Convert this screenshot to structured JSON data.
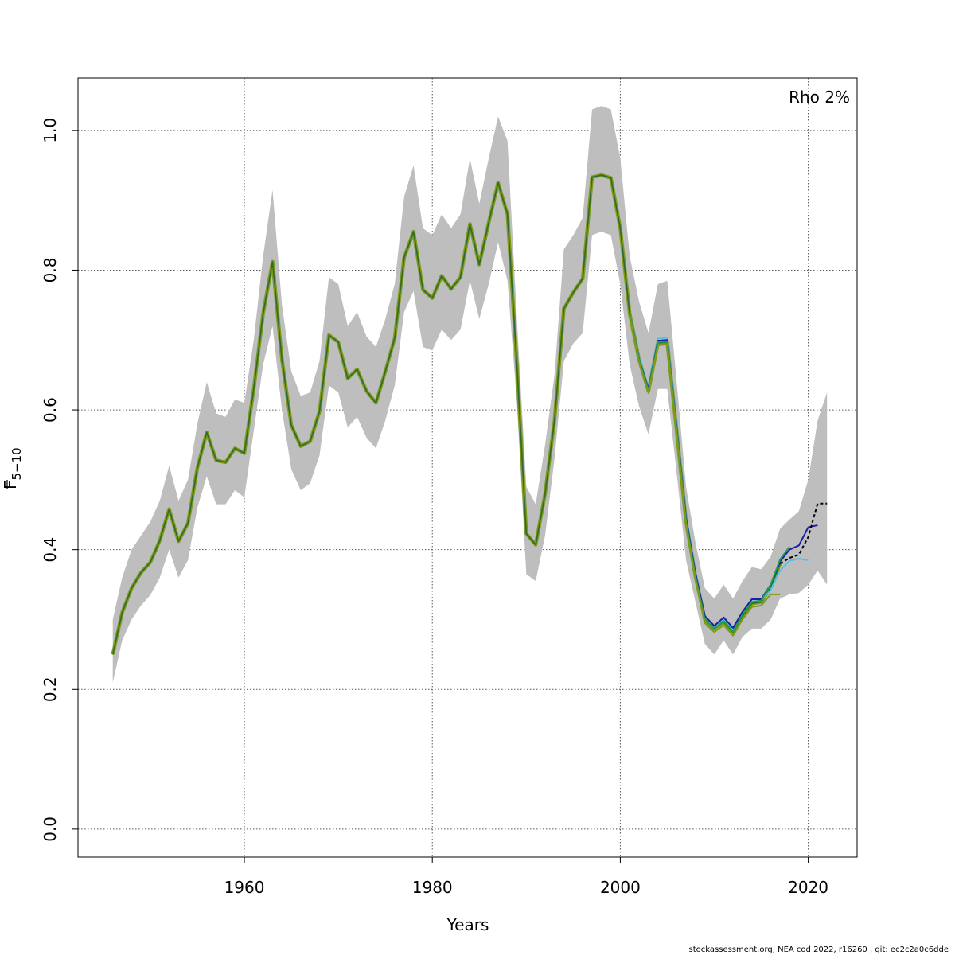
{
  "chart_data": {
    "type": "line",
    "xlabel": "Years",
    "ylabel_main": "F",
    "ylabel_sub": "5−10",
    "annotation": "Rho 2%",
    "footer": "stockassessment.org, NEA  cod  2022, r16260 , git: ec2c2a0c6dde",
    "xlim": [
      1942.3,
      2025.2
    ],
    "ylim": [
      -0.04,
      1.075
    ],
    "x_ticks": [
      1960,
      1980,
      2000,
      2020
    ],
    "y_ticks": [
      0.0,
      0.2,
      0.4,
      0.6,
      0.8,
      1.0
    ],
    "y_tick_labels": [
      "0.0",
      "0.2",
      "0.4",
      "0.6",
      "0.8",
      "1.0"
    ],
    "grid": true,
    "colors": {
      "band": "#bebebe",
      "base": "#000000",
      "peel1": "#4fc4e8",
      "peel2": "#1f1fa0",
      "peel3": "#20a050",
      "peel4": "#7f9a1a",
      "overlay_main": "#2e6b2e"
    },
    "band_upper": [
      [
        1946,
        0.3
      ],
      [
        1947,
        0.36
      ],
      [
        1948,
        0.4
      ],
      [
        1949,
        0.42
      ],
      [
        1950,
        0.44
      ],
      [
        1951,
        0.47
      ],
      [
        1952,
        0.52
      ],
      [
        1953,
        0.47
      ],
      [
        1954,
        0.5
      ],
      [
        1955,
        0.58
      ],
      [
        1956,
        0.64
      ],
      [
        1957,
        0.595
      ],
      [
        1958,
        0.59
      ],
      [
        1959,
        0.615
      ],
      [
        1960,
        0.61
      ],
      [
        1961,
        0.7
      ],
      [
        1962,
        0.82
      ],
      [
        1963,
        0.915
      ],
      [
        1964,
        0.75
      ],
      [
        1965,
        0.655
      ],
      [
        1966,
        0.62
      ],
      [
        1967,
        0.625
      ],
      [
        1968,
        0.67
      ],
      [
        1969,
        0.79
      ],
      [
        1970,
        0.78
      ],
      [
        1971,
        0.72
      ],
      [
        1972,
        0.74
      ],
      [
        1973,
        0.705
      ],
      [
        1974,
        0.69
      ],
      [
        1975,
        0.73
      ],
      [
        1976,
        0.78
      ],
      [
        1977,
        0.905
      ],
      [
        1978,
        0.95
      ],
      [
        1979,
        0.86
      ],
      [
        1980,
        0.85
      ],
      [
        1981,
        0.88
      ],
      [
        1982,
        0.86
      ],
      [
        1983,
        0.88
      ],
      [
        1984,
        0.96
      ],
      [
        1985,
        0.895
      ],
      [
        1986,
        0.96
      ],
      [
        1987,
        1.02
      ],
      [
        1988,
        0.985
      ],
      [
        1989,
        0.73
      ],
      [
        1990,
        0.49
      ],
      [
        1991,
        0.465
      ],
      [
        1992,
        0.55
      ],
      [
        1993,
        0.65
      ],
      [
        1994,
        0.83
      ],
      [
        1995,
        0.85
      ],
      [
        1996,
        0.875
      ],
      [
        1997,
        1.03
      ],
      [
        1998,
        1.035
      ],
      [
        1999,
        1.03
      ],
      [
        2000,
        0.96
      ],
      [
        2001,
        0.82
      ],
      [
        2002,
        0.755
      ],
      [
        2003,
        0.71
      ],
      [
        2004,
        0.78
      ],
      [
        2005,
        0.785
      ],
      [
        2006,
        0.64
      ],
      [
        2007,
        0.49
      ],
      [
        2008,
        0.41
      ],
      [
        2009,
        0.345
      ],
      [
        2010,
        0.33
      ],
      [
        2011,
        0.35
      ],
      [
        2012,
        0.33
      ],
      [
        2013,
        0.355
      ],
      [
        2014,
        0.375
      ],
      [
        2015,
        0.372
      ],
      [
        2016,
        0.39
      ],
      [
        2017,
        0.43
      ],
      [
        2018,
        0.443
      ],
      [
        2019,
        0.455
      ],
      [
        2020,
        0.5
      ],
      [
        2021,
        0.585
      ],
      [
        2022,
        0.625
      ]
    ],
    "band_lower": [
      [
        1946,
        0.21
      ],
      [
        1947,
        0.27
      ],
      [
        1948,
        0.3
      ],
      [
        1949,
        0.32
      ],
      [
        1950,
        0.335
      ],
      [
        1951,
        0.36
      ],
      [
        1952,
        0.4
      ],
      [
        1953,
        0.36
      ],
      [
        1954,
        0.385
      ],
      [
        1955,
        0.46
      ],
      [
        1956,
        0.505
      ],
      [
        1957,
        0.465
      ],
      [
        1958,
        0.465
      ],
      [
        1959,
        0.485
      ],
      [
        1960,
        0.475
      ],
      [
        1961,
        0.57
      ],
      [
        1962,
        0.665
      ],
      [
        1963,
        0.72
      ],
      [
        1964,
        0.6
      ],
      [
        1965,
        0.515
      ],
      [
        1966,
        0.485
      ],
      [
        1967,
        0.495
      ],
      [
        1968,
        0.535
      ],
      [
        1969,
        0.635
      ],
      [
        1970,
        0.625
      ],
      [
        1971,
        0.575
      ],
      [
        1972,
        0.59
      ],
      [
        1973,
        0.56
      ],
      [
        1974,
        0.545
      ],
      [
        1975,
        0.585
      ],
      [
        1976,
        0.635
      ],
      [
        1977,
        0.74
      ],
      [
        1978,
        0.77
      ],
      [
        1979,
        0.69
      ],
      [
        1980,
        0.685
      ],
      [
        1981,
        0.715
      ],
      [
        1982,
        0.7
      ],
      [
        1983,
        0.715
      ],
      [
        1984,
        0.785
      ],
      [
        1985,
        0.73
      ],
      [
        1986,
        0.78
      ],
      [
        1987,
        0.84
      ],
      [
        1988,
        0.785
      ],
      [
        1989,
        0.61
      ],
      [
        1990,
        0.365
      ],
      [
        1991,
        0.355
      ],
      [
        1992,
        0.42
      ],
      [
        1993,
        0.53
      ],
      [
        1994,
        0.67
      ],
      [
        1995,
        0.695
      ],
      [
        1996,
        0.71
      ],
      [
        1997,
        0.85
      ],
      [
        1998,
        0.855
      ],
      [
        1999,
        0.85
      ],
      [
        2000,
        0.78
      ],
      [
        2001,
        0.665
      ],
      [
        2002,
        0.605
      ],
      [
        2003,
        0.565
      ],
      [
        2004,
        0.63
      ],
      [
        2005,
        0.63
      ],
      [
        2006,
        0.51
      ],
      [
        2007,
        0.385
      ],
      [
        2008,
        0.325
      ],
      [
        2009,
        0.265
      ],
      [
        2010,
        0.25
      ],
      [
        2011,
        0.27
      ],
      [
        2012,
        0.25
      ],
      [
        2013,
        0.275
      ],
      [
        2014,
        0.287
      ],
      [
        2015,
        0.287
      ],
      [
        2016,
        0.3
      ],
      [
        2017,
        0.33
      ],
      [
        2018,
        0.336
      ],
      [
        2019,
        0.338
      ],
      [
        2020,
        0.35
      ],
      [
        2021,
        0.37
      ],
      [
        2022,
        0.35
      ]
    ],
    "main_line": [
      [
        1946,
        0.25
      ],
      [
        1947,
        0.31
      ],
      [
        1948,
        0.345
      ],
      [
        1949,
        0.367
      ],
      [
        1950,
        0.382
      ],
      [
        1951,
        0.413
      ],
      [
        1952,
        0.458
      ],
      [
        1953,
        0.412
      ],
      [
        1954,
        0.438
      ],
      [
        1955,
        0.517
      ],
      [
        1956,
        0.568
      ],
      [
        1957,
        0.528
      ],
      [
        1958,
        0.525
      ],
      [
        1959,
        0.545
      ],
      [
        1960,
        0.538
      ],
      [
        1961,
        0.63
      ],
      [
        1962,
        0.738
      ],
      [
        1963,
        0.812
      ],
      [
        1964,
        0.672
      ],
      [
        1965,
        0.578
      ],
      [
        1966,
        0.548
      ],
      [
        1967,
        0.555
      ],
      [
        1968,
        0.598
      ],
      [
        1969,
        0.707
      ],
      [
        1970,
        0.697
      ],
      [
        1971,
        0.645
      ],
      [
        1972,
        0.658
      ],
      [
        1973,
        0.627
      ],
      [
        1974,
        0.61
      ],
      [
        1975,
        0.655
      ],
      [
        1976,
        0.703
      ],
      [
        1977,
        0.818
      ],
      [
        1978,
        0.855
      ],
      [
        1979,
        0.772
      ],
      [
        1980,
        0.76
      ],
      [
        1981,
        0.792
      ],
      [
        1982,
        0.773
      ],
      [
        1983,
        0.79
      ],
      [
        1984,
        0.866
      ],
      [
        1985,
        0.808
      ],
      [
        1986,
        0.868
      ],
      [
        1987,
        0.925
      ],
      [
        1988,
        0.88
      ],
      [
        1989,
        0.665
      ],
      [
        1990,
        0.423
      ],
      [
        1991,
        0.407
      ],
      [
        1992,
        0.48
      ],
      [
        1993,
        0.585
      ],
      [
        1994,
        0.745
      ],
      [
        1995,
        0.768
      ],
      [
        1996,
        0.788
      ],
      [
        1997,
        0.933
      ],
      [
        1998,
        0.936
      ],
      [
        1999,
        0.932
      ],
      [
        2000,
        0.86
      ],
      [
        2001,
        0.738
      ],
      [
        2002,
        0.672
      ],
      [
        2003,
        0.627
      ],
      [
        2004,
        0.696
      ],
      [
        2005,
        0.697
      ],
      [
        2006,
        0.57
      ],
      [
        2007,
        0.44
      ],
      [
        2008,
        0.362
      ],
      [
        2009,
        0.3
      ],
      [
        2010,
        0.287
      ],
      [
        2011,
        0.297
      ],
      [
        2012,
        0.282
      ],
      [
        2013,
        0.305
      ],
      [
        2014,
        0.323
      ],
      [
        2015,
        0.325
      ],
      [
        2016,
        0.346
      ],
      [
        2017,
        0.38
      ],
      [
        2018,
        0.388
      ],
      [
        2019,
        0.393
      ],
      [
        2020,
        0.418
      ],
      [
        2021,
        0.466
      ],
      [
        2022,
        0.466
      ]
    ],
    "peels": [
      {
        "color_key": "peel1",
        "points": [
          [
            2001,
            0.738
          ],
          [
            2002,
            0.675
          ],
          [
            2003,
            0.632
          ],
          [
            2004,
            0.702
          ],
          [
            2005,
            0.703
          ],
          [
            2006,
            0.578
          ],
          [
            2007,
            0.447
          ],
          [
            2008,
            0.368
          ],
          [
            2009,
            0.305
          ],
          [
            2010,
            0.29
          ],
          [
            2011,
            0.3
          ],
          [
            2012,
            0.286
          ],
          [
            2013,
            0.308
          ],
          [
            2014,
            0.326
          ],
          [
            2015,
            0.327
          ],
          [
            2016,
            0.342
          ],
          [
            2017,
            0.37
          ],
          [
            2018,
            0.384
          ],
          [
            2019,
            0.387
          ],
          [
            2020,
            0.385
          ]
        ]
      },
      {
        "color_key": "peel2",
        "points": [
          [
            2001,
            0.738
          ],
          [
            2002,
            0.673
          ],
          [
            2003,
            0.63
          ],
          [
            2004,
            0.699
          ],
          [
            2005,
            0.7
          ],
          [
            2006,
            0.575
          ],
          [
            2007,
            0.445
          ],
          [
            2008,
            0.366
          ],
          [
            2009,
            0.305
          ],
          [
            2010,
            0.291
          ],
          [
            2011,
            0.303
          ],
          [
            2012,
            0.288
          ],
          [
            2013,
            0.311
          ],
          [
            2014,
            0.329
          ],
          [
            2015,
            0.329
          ],
          [
            2016,
            0.35
          ],
          [
            2017,
            0.383
          ],
          [
            2018,
            0.4
          ],
          [
            2019,
            0.406
          ],
          [
            2020,
            0.432
          ],
          [
            2021,
            0.435
          ]
        ]
      },
      {
        "color_key": "peel3",
        "points": [
          [
            2001,
            0.738
          ],
          [
            2002,
            0.672
          ],
          [
            2003,
            0.628
          ],
          [
            2004,
            0.697
          ],
          [
            2005,
            0.698
          ],
          [
            2006,
            0.572
          ],
          [
            2007,
            0.441
          ],
          [
            2008,
            0.362
          ],
          [
            2009,
            0.3
          ],
          [
            2010,
            0.287
          ],
          [
            2011,
            0.298
          ],
          [
            2012,
            0.283
          ],
          [
            2013,
            0.307
          ],
          [
            2014,
            0.325
          ],
          [
            2015,
            0.327
          ],
          [
            2016,
            0.35
          ],
          [
            2017,
            0.386
          ],
          [
            2018,
            0.404
          ]
        ]
      },
      {
        "color_key": "peel4",
        "points": [
          [
            2001,
            0.735
          ],
          [
            2002,
            0.668
          ],
          [
            2003,
            0.624
          ],
          [
            2004,
            0.692
          ],
          [
            2005,
            0.694
          ],
          [
            2006,
            0.567
          ],
          [
            2007,
            0.436
          ],
          [
            2008,
            0.357
          ],
          [
            2009,
            0.295
          ],
          [
            2010,
            0.282
          ],
          [
            2011,
            0.292
          ],
          [
            2012,
            0.277
          ],
          [
            2013,
            0.3
          ],
          [
            2014,
            0.318
          ],
          [
            2015,
            0.32
          ],
          [
            2016,
            0.336
          ],
          [
            2017,
            0.336
          ]
        ]
      }
    ]
  }
}
